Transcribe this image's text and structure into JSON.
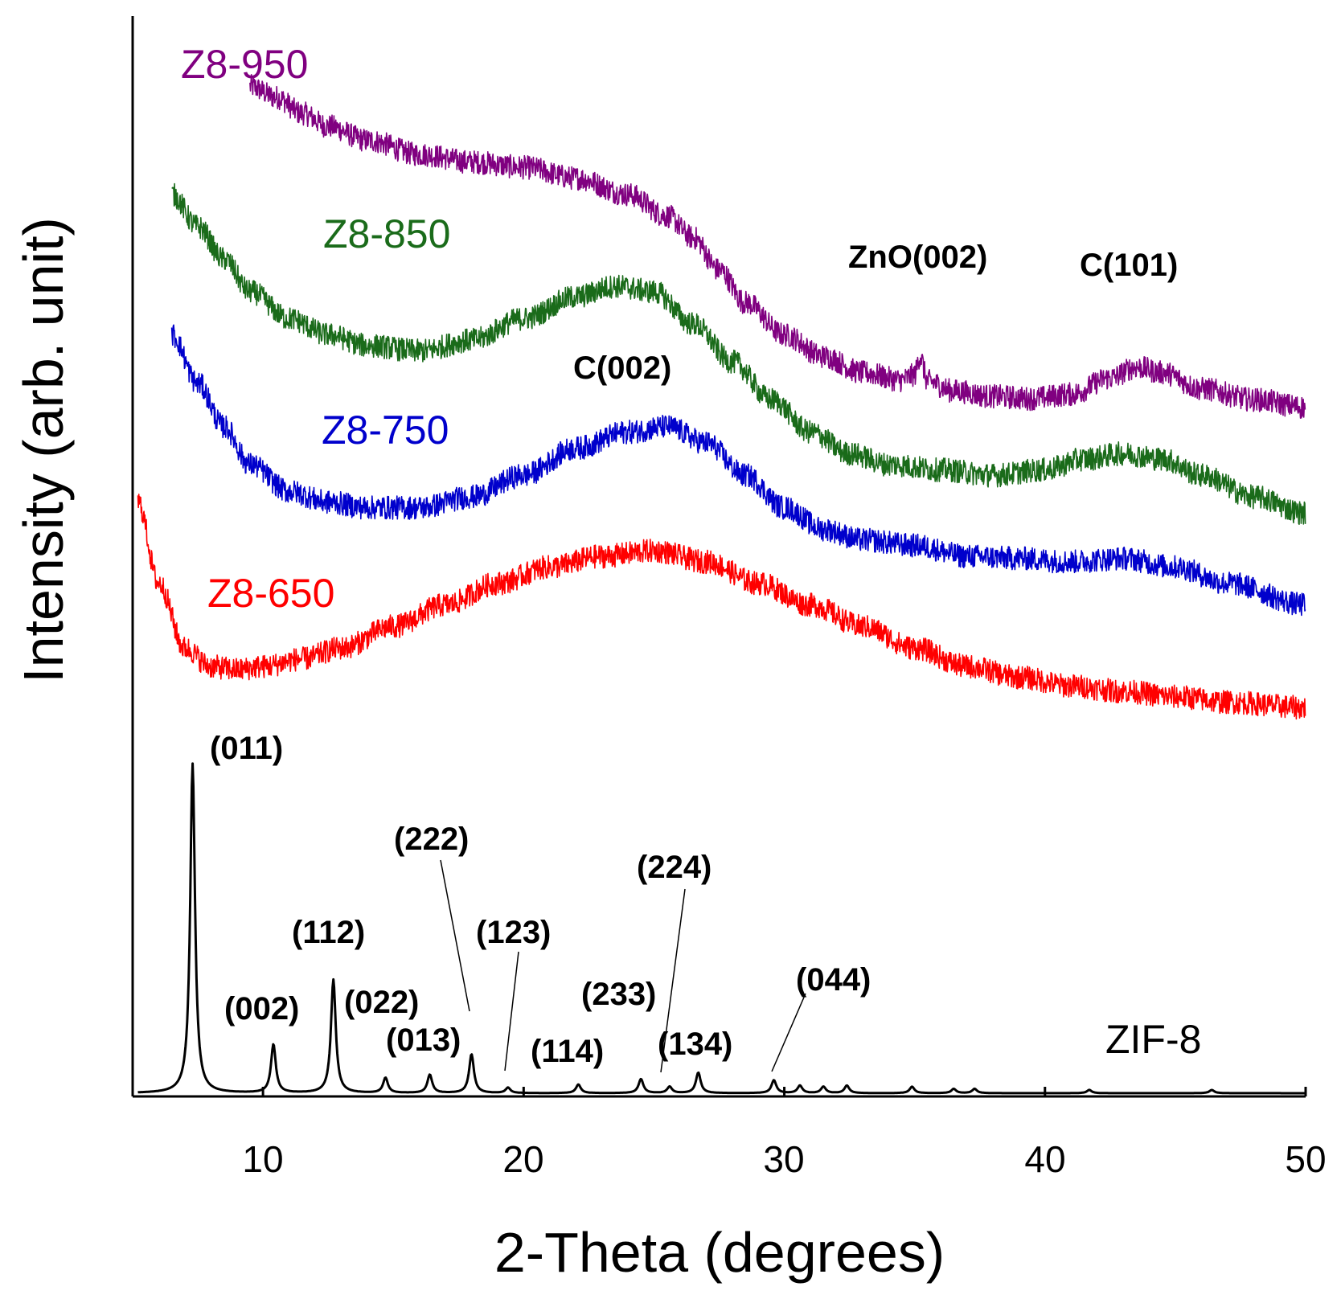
{
  "chart_data": {
    "type": "line",
    "title": "",
    "xlabel": "2-Theta (degrees)",
    "ylabel": "Intensity (arb. unit)",
    "xlim": [
      5,
      50
    ],
    "xticks": [
      "10",
      "20",
      "30",
      "40",
      "50"
    ],
    "yticks": [],
    "grid": false,
    "legend": "inline labels",
    "series": [
      {
        "name": "Z8-950",
        "color": "#800080",
        "x": [
          9.5,
          10.5,
          11.5,
          12.5,
          14,
          16,
          18,
          20,
          22,
          24,
          25.5,
          26.5,
          27.5,
          28.5,
          30,
          31.5,
          33,
          34.5,
          35.0,
          35.2,
          35.5,
          36.5,
          38,
          39.5,
          41,
          42.5,
          43.5,
          44.5,
          46,
          48,
          50
        ],
        "y": [
          93.5,
          92.5,
          91.0,
          89.8,
          88.5,
          87.2,
          86.5,
          86.0,
          85.0,
          83.5,
          81.5,
          79.5,
          76.5,
          73.5,
          70.5,
          68.5,
          67.0,
          66.3,
          66.8,
          68.5,
          66.2,
          65.3,
          64.8,
          64.6,
          65.0,
          66.5,
          67.5,
          67.0,
          65.5,
          64.5,
          63.8
        ]
      },
      {
        "name": "Z8-850",
        "color": "#1a6b1a",
        "x": [
          6.5,
          7.5,
          8.5,
          9.5,
          11,
          12.5,
          14,
          16,
          18,
          20,
          22,
          23.5,
          25,
          26.5,
          28,
          29.5,
          31,
          32.5,
          34,
          36,
          38,
          40,
          41.5,
          43,
          44.5,
          46,
          48,
          50
        ],
        "y": [
          83.5,
          80.5,
          77.5,
          74.5,
          72.0,
          70.5,
          69.5,
          69.0,
          70.0,
          72.0,
          74.0,
          75.0,
          74.5,
          71.5,
          68.0,
          64.5,
          61.5,
          59.5,
          58.5,
          58.0,
          57.5,
          58.0,
          59.0,
          59.5,
          59.0,
          57.5,
          55.5,
          54.0
        ]
      },
      {
        "name": "Z8-750",
        "color": "#0000cc",
        "x": [
          6.5,
          7.5,
          8.5,
          9.5,
          11,
          12.5,
          14,
          16,
          18,
          20,
          22,
          24,
          25.5,
          27,
          28.5,
          30,
          31.5,
          33,
          35,
          37,
          39,
          41,
          43,
          45,
          47,
          50
        ],
        "y": [
          70.5,
          66.0,
          62.0,
          58.5,
          56.0,
          55.0,
          54.5,
          54.5,
          55.5,
          57.5,
          60.0,
          61.5,
          62.0,
          60.5,
          57.5,
          54.5,
          52.5,
          51.5,
          51.0,
          50.0,
          49.8,
          49.5,
          49.8,
          49.0,
          47.5,
          45.5
        ]
      },
      {
        "name": "Z8-650",
        "color": "#ff0000",
        "x": [
          5.2,
          6,
          7,
          8,
          9,
          10,
          11.5,
          13,
          15,
          17,
          19,
          21,
          23,
          25,
          27,
          29,
          31,
          33,
          35,
          37,
          39,
          41,
          43,
          45,
          47,
          50
        ],
        "y": [
          55.0,
          47.5,
          41.5,
          39.8,
          39.5,
          39.8,
          40.5,
          41.5,
          43.5,
          45.5,
          47.5,
          49.0,
          50.0,
          50.5,
          49.5,
          47.5,
          45.5,
          43.5,
          41.5,
          39.8,
          38.8,
          38.0,
          37.5,
          37.0,
          36.5,
          36.0
        ]
      },
      {
        "name": "ZIF-8",
        "color": "#000000",
        "peaks": [
          {
            "x": 7.3,
            "h": 30.5
          },
          {
            "x": 10.4,
            "h": 4.5
          },
          {
            "x": 12.7,
            "h": 10.5
          },
          {
            "x": 14.7,
            "h": 1.4
          },
          {
            "x": 16.4,
            "h": 1.7
          },
          {
            "x": 18.0,
            "h": 3.6
          },
          {
            "x": 19.4,
            "h": 0.5
          },
          {
            "x": 22.1,
            "h": 0.8
          },
          {
            "x": 24.5,
            "h": 1.3
          },
          {
            "x": 25.6,
            "h": 0.6
          },
          {
            "x": 26.7,
            "h": 1.9
          },
          {
            "x": 29.6,
            "h": 1.2
          },
          {
            "x": 30.6,
            "h": 0.7
          },
          {
            "x": 31.5,
            "h": 0.6
          },
          {
            "x": 32.4,
            "h": 0.7
          },
          {
            "x": 34.9,
            "h": 0.6
          },
          {
            "x": 36.5,
            "h": 0.4
          },
          {
            "x": 37.3,
            "h": 0.4
          },
          {
            "x": 41.7,
            "h": 0.3
          },
          {
            "x": 46.4,
            "h": 0.3
          }
        ],
        "baseline": 0.3
      }
    ],
    "series_labels": {
      "Z8-950": "Z8-950",
      "Z8-850": "Z8-850",
      "Z8-750": "Z8-750",
      "Z8-650": "Z8-650",
      "ZIF-8": "ZIF-8"
    },
    "annotations": [
      {
        "id": "zno002",
        "text": "ZnO(002)"
      },
      {
        "id": "c101",
        "text": "C(101)"
      },
      {
        "id": "c002",
        "text": "C(002)"
      },
      {
        "id": "h011",
        "text": "(011)"
      },
      {
        "id": "h002",
        "text": "(002)"
      },
      {
        "id": "h112",
        "text": "(112)"
      },
      {
        "id": "h022",
        "text": "(022)"
      },
      {
        "id": "h013",
        "text": "(013)"
      },
      {
        "id": "h222",
        "text": "(222)"
      },
      {
        "id": "h123",
        "text": "(123)"
      },
      {
        "id": "h114",
        "text": "(114)"
      },
      {
        "id": "h233",
        "text": "(233)"
      },
      {
        "id": "h224",
        "text": "(224)"
      },
      {
        "id": "h134",
        "text": "(134)"
      },
      {
        "id": "h044",
        "text": "(044)"
      }
    ]
  }
}
